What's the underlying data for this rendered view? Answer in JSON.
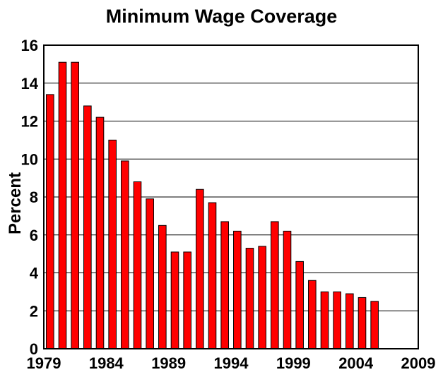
{
  "chart_data": {
    "type": "bar",
    "title": "Minimum Wage Coverage",
    "xlabel": "",
    "ylabel": "Percent",
    "categories": [
      "1979",
      "1980",
      "1981",
      "1982",
      "1983",
      "1984",
      "1985",
      "1986",
      "1987",
      "1988",
      "1989",
      "1990",
      "1991",
      "1992",
      "1993",
      "1994",
      "1995",
      "1996",
      "1997",
      "1998",
      "1999",
      "2000",
      "2001",
      "2002",
      "2003",
      "2004",
      "2005"
    ],
    "values": [
      13.4,
      15.1,
      15.1,
      12.8,
      12.2,
      11.0,
      9.9,
      8.8,
      7.9,
      6.5,
      5.1,
      5.1,
      8.4,
      7.7,
      6.7,
      6.2,
      5.3,
      5.4,
      6.7,
      6.2,
      4.6,
      3.6,
      3.0,
      3.0,
      2.9,
      2.7,
      2.5
    ],
    "xlim": [
      1979,
      2009
    ],
    "ylim": [
      0,
      16
    ],
    "yticks": [
      "0",
      "2",
      "4",
      "6",
      "8",
      "10",
      "12",
      "14",
      "16"
    ],
    "xticks": [
      "1979",
      "1984",
      "1989",
      "1994",
      "1999",
      "2004",
      "2009"
    ],
    "grid": true,
    "bar_color": "#ff0000"
  }
}
